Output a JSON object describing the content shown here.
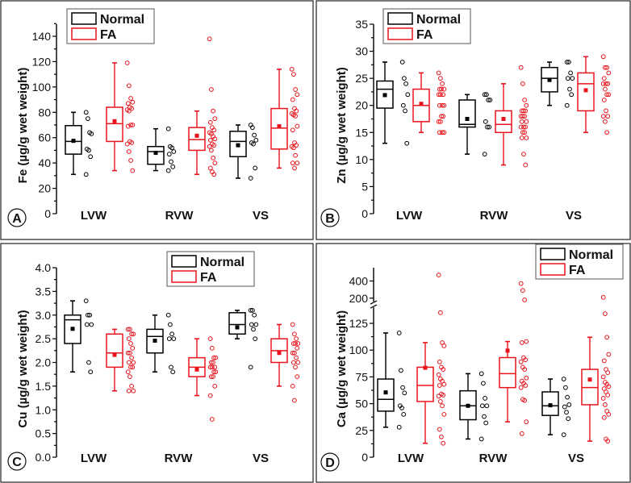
{
  "figure": {
    "legend": [
      {
        "label": "Normal",
        "color": "#000000"
      },
      {
        "label": "FA",
        "color": "#e8141c"
      }
    ],
    "categories": [
      "LVW",
      "RVW",
      "VS"
    ]
  },
  "chart_data": [
    {
      "type": "box",
      "panel": "A",
      "title": "",
      "xlabel": "",
      "ylabel": "Fe (µg/g wet weight)",
      "ylim": [
        0,
        150
      ],
      "yticks": [
        0,
        20,
        40,
        60,
        80,
        100,
        120,
        140
      ],
      "ytick_labels": [
        "0",
        "20",
        "40",
        "60",
        "80",
        "100",
        "120",
        "140"
      ],
      "legend_position": "top-left",
      "categories": [
        "LVW",
        "RVW",
        "VS"
      ],
      "series": [
        {
          "name": "Normal",
          "color": "#000000",
          "boxes": [
            {
              "category": "LVW",
              "min": 31,
              "q1": 47,
              "median": 57,
              "q3": 69.5,
              "max": 80,
              "mean": 57.5,
              "points": [
                80,
                75,
                64,
                63,
                51,
                50,
                45,
                31
              ]
            },
            {
              "category": "RVW",
              "min": 34,
              "q1": 39,
              "median": 49,
              "q3": 53,
              "max": 67,
              "mean": 48,
              "points": [
                67,
                53,
                52,
                49,
                47,
                41,
                37,
                34
              ]
            },
            {
              "category": "VS",
              "min": 28,
              "q1": 45,
              "median": 57,
              "q3": 65,
              "max": 70,
              "mean": 54,
              "points": [
                70,
                68,
                62,
                58,
                56,
                55,
                36,
                28
              ]
            }
          ]
        },
        {
          "name": "FA",
          "color": "#e8141c",
          "boxes": [
            {
              "category": "LVW",
              "min": 34,
              "q1": 57,
              "median": 71,
              "q3": 84,
              "max": 119,
              "mean": 73,
              "points": [
                119,
                101,
                91,
                88,
                87,
                84,
                83,
                82,
                81,
                70,
                70,
                69,
                57,
                56,
                55,
                49,
                42,
                34
              ]
            },
            {
              "category": "RVW",
              "min": 31,
              "q1": 50,
              "median": 58.5,
              "q3": 68,
              "max": 81,
              "mean": 61.5,
              "points": [
                138,
                98,
                81,
                75,
                72,
                68,
                66,
                64,
                63,
                61,
                59,
                58,
                55,
                54,
                53,
                50,
                44,
                40,
                36,
                33,
                31
              ]
            },
            {
              "category": "VS",
              "min": 36,
              "q1": 51,
              "median": 67.5,
              "q3": 83,
              "max": 114,
              "mean": 69,
              "points": [
                114,
                110,
                98,
                94,
                90,
                83,
                81,
                79,
                78,
                77,
                69,
                66,
                56,
                54,
                53,
                52,
                46,
                40,
                40,
                36
              ]
            }
          ]
        }
      ]
    },
    {
      "type": "box",
      "panel": "B",
      "title": "",
      "xlabel": "",
      "ylabel": "Zn (µg/g wet weight)",
      "ylim": [
        0,
        36
      ],
      "yticks": [
        0,
        5,
        10,
        15,
        20,
        25,
        30,
        35
      ],
      "ytick_labels": [
        "0",
        "5",
        "10",
        "15",
        "20",
        "25",
        "30",
        "35"
      ],
      "legend_position": "top-left",
      "categories": [
        "LVW",
        "RVW",
        "VS"
      ],
      "series": [
        {
          "name": "Normal",
          "color": "#000000",
          "boxes": [
            {
              "category": "LVW",
              "min": 13,
              "q1": 19.5,
              "median": 23,
              "q3": 24.5,
              "max": 28,
              "mean": 21.9,
              "points": [
                28,
                25,
                24,
                22,
                20,
                19,
                13
              ]
            },
            {
              "category": "RVW",
              "min": 11,
              "q1": 16,
              "median": 16.5,
              "q3": 21,
              "max": 22,
              "mean": 17.5,
              "points": [
                22,
                22,
                21,
                21,
                17,
                16,
                16,
                11
              ]
            },
            {
              "category": "VS",
              "min": 20,
              "q1": 22.5,
              "median": 25,
              "q3": 27,
              "max": 28,
              "mean": 24.7,
              "points": [
                28,
                28,
                26,
                25,
                25,
                23,
                22,
                20
              ]
            }
          ]
        },
        {
          "name": "FA",
          "color": "#e8141c",
          "boxes": [
            {
              "category": "LVW",
              "min": 15,
              "q1": 17,
              "median": 20,
              "q3": 23,
              "max": 26,
              "mean": 20.3,
              "points": [
                26,
                25,
                24,
                23,
                23,
                23,
                22,
                22,
                22,
                20,
                20,
                20,
                18,
                18,
                17,
                17,
                15,
                15,
                15
              ]
            },
            {
              "category": "RVW",
              "min": 9,
              "q1": 15,
              "median": 16.5,
              "q3": 19,
              "max": 24,
              "mean": 17.5,
              "points": [
                27,
                24,
                21,
                20,
                19,
                19,
                19,
                18,
                18,
                18,
                17,
                17,
                16,
                16,
                16,
                15,
                15,
                14,
                14,
                11,
                9
              ]
            },
            {
              "category": "VS",
              "min": 15,
              "q1": 19,
              "median": 24,
              "q3": 26,
              "max": 29,
              "mean": 22.8,
              "points": [
                29,
                27,
                27,
                26,
                25,
                24,
                24,
                24,
                23,
                22,
                22,
                21,
                19,
                18,
                18,
                17,
                15
              ]
            }
          ]
        }
      ]
    },
    {
      "type": "box",
      "panel": "C",
      "title": "",
      "xlabel": "",
      "ylabel": "Cu (µg/g wet weight)",
      "ylim": [
        0,
        4.0
      ],
      "yticks": [
        0,
        0.5,
        1.0,
        1.5,
        2.0,
        2.5,
        3.0,
        3.5,
        4.0
      ],
      "ytick_labels": [
        "0.0",
        "0.5",
        "1.0",
        "1.5",
        "2.0",
        "2.5",
        "3.0",
        "3.5",
        "4.0"
      ],
      "legend_position": "top-right",
      "categories": [
        "LVW",
        "RVW",
        "VS"
      ],
      "series": [
        {
          "name": "Normal",
          "color": "#000000",
          "boxes": [
            {
              "category": "LVW",
              "min": 1.8,
              "q1": 2.4,
              "median": 2.9,
              "q3": 3.0,
              "max": 3.3,
              "mean": 2.71,
              "points": [
                3.3,
                3.0,
                3.0,
                2.8,
                2.8,
                2.0,
                1.8
              ]
            },
            {
              "category": "RVW",
              "min": 1.8,
              "q1": 2.2,
              "median": 2.55,
              "q3": 2.7,
              "max": 3.0,
              "mean": 2.46,
              "points": [
                3.0,
                2.8,
                2.6,
                2.5,
                2.5,
                1.9,
                1.8
              ]
            },
            {
              "category": "VS",
              "min": 2.5,
              "q1": 2.6,
              "median": 2.8,
              "q3": 3.05,
              "max": 3.1,
              "mean": 2.74,
              "points": [
                3.1,
                3.1,
                3.0,
                2.8,
                2.8,
                2.7,
                2.5,
                1.9
              ]
            }
          ]
        },
        {
          "name": "FA",
          "color": "#e8141c",
          "boxes": [
            {
              "category": "LVW",
              "min": 1.4,
              "q1": 1.9,
              "median": 2.2,
              "q3": 2.6,
              "max": 2.7,
              "mean": 2.16,
              "points": [
                2.7,
                2.7,
                2.6,
                2.6,
                2.5,
                2.4,
                2.3,
                2.2,
                2.2,
                2.1,
                2.0,
                2.0,
                1.9,
                1.9,
                1.8,
                1.7,
                1.5,
                1.4,
                1.4
              ]
            },
            {
              "category": "RVW",
              "min": 1.3,
              "q1": 1.7,
              "median": 1.9,
              "q3": 2.1,
              "max": 2.5,
              "mean": 1.85,
              "points": [
                2.5,
                2.3,
                2.1,
                2.1,
                2.0,
                2.0,
                1.9,
                1.9,
                1.9,
                1.8,
                1.8,
                1.7,
                1.7,
                1.5,
                1.3,
                0.8
              ]
            },
            {
              "category": "VS",
              "min": 1.5,
              "q1": 2.0,
              "median": 2.25,
              "q3": 2.5,
              "max": 2.8,
              "mean": 2.2,
              "points": [
                2.8,
                2.6,
                2.5,
                2.4,
                2.4,
                2.4,
                2.3,
                2.2,
                2.2,
                2.1,
                2.0,
                2.0,
                1.9,
                1.7,
                1.5,
                1.2
              ]
            }
          ]
        }
      ]
    },
    {
      "type": "box",
      "panel": "D",
      "title": "",
      "xlabel": "",
      "ylabel": "Ca (µg/g wet weight)",
      "ylim": [
        0,
        140
      ],
      "axis_break": {
        "lower_max": 140,
        "upper_ticks": [
          200,
          400
        ],
        "upper_range": [
          150,
          480
        ]
      },
      "yticks": [
        0,
        25,
        50,
        75,
        100,
        125
      ],
      "ytick_labels": [
        "0",
        "25",
        "50",
        "75",
        "100",
        "125",
        "200",
        "400"
      ],
      "legend_position": "top-right",
      "categories": [
        "LVW",
        "RVW",
        "VS"
      ],
      "series": [
        {
          "name": "Normal",
          "color": "#000000",
          "boxes": [
            {
              "category": "LVW",
              "min": 28,
              "q1": 43,
              "median": 54,
              "q3": 73,
              "max": 116,
              "mean": 60.5,
              "points": [
                116,
                81,
                65,
                60,
                48,
                46,
                40,
                28
              ]
            },
            {
              "category": "RVW",
              "min": 17,
              "q1": 35,
              "median": 48,
              "q3": 62,
              "max": 78,
              "mean": 48,
              "points": [
                78,
                69,
                55,
                48,
                48,
                38,
                32,
                17
              ]
            },
            {
              "category": "VS",
              "min": 21,
              "q1": 39,
              "median": 48,
              "q3": 61,
              "max": 73,
              "mean": 48.5,
              "points": [
                73,
                65,
                56,
                49,
                47,
                42,
                36,
                21
              ]
            }
          ]
        },
        {
          "name": "FA",
          "color": "#e8141c",
          "boxes": [
            {
              "category": "LVW",
              "min": 13,
              "q1": 52,
              "median": 67,
              "q3": 84,
              "max": 107,
              "mean": 83.5,
              "points": [
                470,
                135,
                107,
                104,
                89,
                84,
                82,
                77,
                73,
                71,
                68,
                67,
                59,
                58,
                57,
                52,
                48,
                40,
                26,
                19,
                13
              ]
            },
            {
              "category": "RVW",
              "min": 33,
              "q1": 65,
              "median": 78,
              "q3": 93,
              "max": 108,
              "mean": 99.5,
              "points": [
                370,
                290,
                180,
                108,
                107,
                93,
                91,
                89,
                84,
                82,
                74,
                71,
                69,
                67,
                65,
                54,
                53,
                33,
                22
              ]
            },
            {
              "category": "VS",
              "min": 15,
              "q1": 49,
              "median": 65,
              "q3": 82,
              "max": 112,
              "mean": 72.5,
              "points": [
                210,
                134,
                112,
                96,
                90,
                82,
                79,
                75,
                70,
                68,
                66,
                64,
                61,
                58,
                55,
                49,
                43,
                40,
                37,
                17,
                15
              ]
            }
          ]
        }
      ]
    }
  ]
}
